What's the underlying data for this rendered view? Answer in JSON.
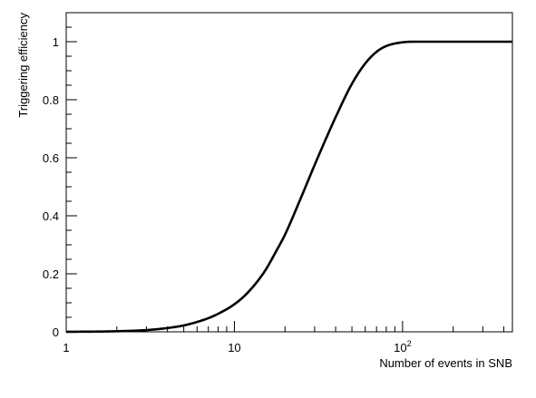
{
  "chart_data": {
    "type": "line",
    "title": "",
    "xlabel": "Number of events in SNB",
    "ylabel": "Triggering efficiency",
    "xscale": "log",
    "xlim": [
      1,
      450
    ],
    "ylim": [
      0,
      1.1
    ],
    "grid": false,
    "legend": "none",
    "x_ticks": [
      {
        "value": 1,
        "label": "1"
      },
      {
        "value": 10,
        "label": "10"
      },
      {
        "value": 100,
        "label": "10",
        "exponent": "2"
      }
    ],
    "y_ticks": [
      {
        "value": 0,
        "label": "0"
      },
      {
        "value": 0.2,
        "label": "0.2"
      },
      {
        "value": 0.4,
        "label": "0.4"
      },
      {
        "value": 0.6,
        "label": "0.6"
      },
      {
        "value": 0.8,
        "label": "0.8"
      },
      {
        "value": 1,
        "label": "1"
      }
    ],
    "series": [
      {
        "color": "#000000",
        "x": [
          1,
          2,
          3,
          4,
          5,
          6,
          7,
          8,
          10,
          12,
          15,
          18,
          20,
          25,
          30,
          35,
          40,
          50,
          60,
          70,
          80,
          100,
          120,
          150,
          200,
          300,
          450
        ],
        "y": [
          0.0,
          0.002,
          0.006,
          0.013,
          0.022,
          0.034,
          0.047,
          0.062,
          0.095,
          0.135,
          0.205,
          0.285,
          0.335,
          0.465,
          0.575,
          0.665,
          0.74,
          0.855,
          0.925,
          0.965,
          0.985,
          0.998,
          1.0,
          1.0,
          1.0,
          1.0,
          1.0
        ]
      }
    ]
  }
}
